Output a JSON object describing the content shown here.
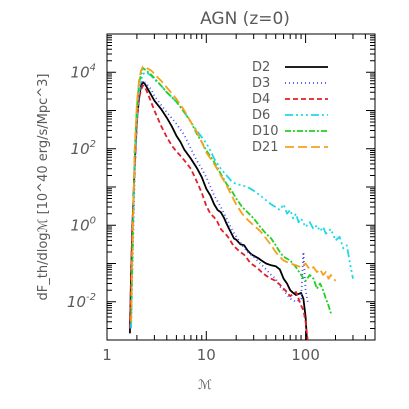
{
  "chart_data": {
    "type": "line",
    "title": "AGN (z=0)",
    "xlabel": "ℳ",
    "ylabel": "dF_th/dlogℳ [10^40 erg/s/Mpc^3]",
    "xscale": "log",
    "yscale": "log",
    "xlim": [
      1,
      500
    ],
    "ylim": [
      0.001,
      100000
    ],
    "x_ticks": [
      {
        "value": 1,
        "label": "1"
      },
      {
        "value": 10,
        "label": "10"
      },
      {
        "value": 100,
        "label": "100"
      }
    ],
    "y_ticks": [
      {
        "value": 0.01,
        "base": "10",
        "exp": "-2"
      },
      {
        "value": 1,
        "base": "10",
        "exp": "0"
      },
      {
        "value": 100,
        "base": "10",
        "exp": "2"
      },
      {
        "value": 10000,
        "base": "10",
        "exp": "4"
      }
    ],
    "legend_position": "top-right",
    "series": [
      {
        "name": "D2",
        "color": "#000000",
        "dash": "solid",
        "points": [
          [
            1.7,
            0.0015
          ],
          [
            1.75,
            0.05
          ],
          [
            1.8,
            0.8
          ],
          [
            1.9,
            40
          ],
          [
            2.0,
            600
          ],
          [
            2.1,
            2000
          ],
          [
            2.2,
            4500
          ],
          [
            2.3,
            5500
          ],
          [
            2.4,
            5000
          ],
          [
            2.6,
            3500
          ],
          [
            2.8,
            2500
          ],
          [
            3.0,
            1800
          ],
          [
            3.5,
            1100
          ],
          [
            4,
            650
          ],
          [
            4.5,
            380
          ],
          [
            5,
            220
          ],
          [
            5.5,
            150
          ],
          [
            6,
            95
          ],
          [
            7,
            55
          ],
          [
            8,
            32
          ],
          [
            9,
            18
          ],
          [
            10,
            9
          ],
          [
            11,
            6
          ],
          [
            12,
            3.5
          ],
          [
            13,
            2.5
          ],
          [
            14,
            2.2
          ],
          [
            15,
            1.6
          ],
          [
            16,
            1.1
          ],
          [
            17,
            0.8
          ],
          [
            18,
            0.6
          ],
          [
            19,
            0.45
          ],
          [
            20,
            0.42
          ],
          [
            22,
            0.32
          ],
          [
            24,
            0.3
          ],
          [
            26,
            0.22
          ],
          [
            28,
            0.18
          ],
          [
            30,
            0.16
          ],
          [
            33,
            0.14
          ],
          [
            36,
            0.12
          ],
          [
            40,
            0.1
          ],
          [
            45,
            0.09
          ],
          [
            50,
            0.085
          ],
          [
            55,
            0.07
          ],
          [
            60,
            0.04
          ],
          [
            65,
            0.03
          ],
          [
            70,
            0.02
          ],
          [
            75,
            0.017
          ],
          [
            80,
            0.015
          ],
          [
            85,
            0.016
          ],
          [
            90,
            0.017
          ],
          [
            95,
            0.012
          ],
          [
            100,
            0.004
          ],
          [
            103,
            0.001
          ]
        ]
      },
      {
        "name": "D3",
        "color": "#4a4aff",
        "dash": "1,3",
        "points": [
          [
            1.75,
            0.003
          ],
          [
            1.8,
            0.05
          ],
          [
            1.9,
            20
          ],
          [
            2.0,
            500
          ],
          [
            2.1,
            2500
          ],
          [
            2.2,
            5000
          ],
          [
            2.3,
            6000
          ],
          [
            2.5,
            5000
          ],
          [
            2.8,
            3500
          ],
          [
            3,
            2400
          ],
          [
            3.5,
            1400
          ],
          [
            4,
            900
          ],
          [
            5,
            450
          ],
          [
            6,
            230
          ],
          [
            7,
            100
          ],
          [
            8,
            50
          ],
          [
            9,
            30
          ],
          [
            10,
            18
          ],
          [
            12,
            6
          ],
          [
            14,
            3
          ],
          [
            16,
            1.5
          ],
          [
            18,
            0.8
          ],
          [
            20,
            0.5
          ],
          [
            23,
            0.3
          ],
          [
            26,
            0.2
          ],
          [
            30,
            0.15
          ],
          [
            35,
            0.1
          ],
          [
            40,
            0.07
          ],
          [
            45,
            0.05
          ],
          [
            50,
            0.04
          ],
          [
            55,
            0.025
          ],
          [
            60,
            0.02
          ],
          [
            70,
            0.012
          ],
          [
            80,
            0.01
          ],
          [
            90,
            0.012
          ],
          [
            95,
            0.2
          ],
          [
            98,
            0.05
          ],
          [
            100,
            0.02
          ],
          [
            105,
            0.01
          ]
        ]
      },
      {
        "name": "D4",
        "color": "#e0202a",
        "dash": "5,3",
        "points": [
          [
            1.7,
            0.002
          ],
          [
            1.75,
            0.05
          ],
          [
            1.8,
            0.8
          ],
          [
            1.9,
            30
          ],
          [
            2.0,
            500
          ],
          [
            2.1,
            2000
          ],
          [
            2.2,
            3500
          ],
          [
            2.3,
            4500
          ],
          [
            2.4,
            4200
          ],
          [
            2.6,
            2600
          ],
          [
            2.8,
            1600
          ],
          [
            3,
            1000
          ],
          [
            3.5,
            400
          ],
          [
            4,
            200
          ],
          [
            4.5,
            120
          ],
          [
            5,
            85
          ],
          [
            5.5,
            65
          ],
          [
            6,
            50
          ],
          [
            7,
            30
          ],
          [
            8,
            14
          ],
          [
            9,
            7
          ],
          [
            10,
            3.2
          ],
          [
            11,
            2
          ],
          [
            12,
            1.6
          ],
          [
            13,
            1.2
          ],
          [
            14,
            0.8
          ],
          [
            15,
            0.65
          ],
          [
            16,
            0.55
          ],
          [
            17,
            0.45
          ],
          [
            18,
            0.35
          ],
          [
            19,
            0.28
          ],
          [
            20,
            0.25
          ],
          [
            22,
            0.2
          ],
          [
            24,
            0.17
          ],
          [
            26,
            0.13
          ],
          [
            28,
            0.1
          ],
          [
            30,
            0.09
          ],
          [
            33,
            0.075
          ],
          [
            36,
            0.06
          ],
          [
            40,
            0.048
          ],
          [
            45,
            0.04
          ],
          [
            50,
            0.035
          ],
          [
            55,
            0.028
          ],
          [
            60,
            0.022
          ],
          [
            65,
            0.018
          ],
          [
            70,
            0.014
          ],
          [
            75,
            0.016
          ],
          [
            80,
            0.018
          ],
          [
            85,
            0.012
          ],
          [
            90,
            0.008
          ],
          [
            95,
            0.006
          ],
          [
            100,
            0.003
          ],
          [
            105,
            0.001
          ]
        ]
      },
      {
        "name": "D6",
        "color": "#20d8e8",
        "dash": "8,3,2,3,2,3,2,3",
        "points": [
          [
            1.75,
            0.002
          ],
          [
            1.8,
            0.1
          ],
          [
            1.9,
            50
          ],
          [
            2.0,
            700
          ],
          [
            2.1,
            3000
          ],
          [
            2.2,
            6000
          ],
          [
            2.3,
            9000
          ],
          [
            2.5,
            10000
          ],
          [
            2.8,
            8000
          ],
          [
            3,
            6500
          ],
          [
            3.5,
            4500
          ],
          [
            4,
            3000
          ],
          [
            5,
            1700
          ],
          [
            6,
            900
          ],
          [
            7,
            500
          ],
          [
            8,
            300
          ],
          [
            9,
            200
          ],
          [
            10,
            140
          ],
          [
            11,
            90
          ],
          [
            12,
            55
          ],
          [
            14,
            30
          ],
          [
            16,
            20
          ],
          [
            18,
            14
          ],
          [
            20,
            12
          ],
          [
            23,
            11
          ],
          [
            26,
            10
          ],
          [
            30,
            8
          ],
          [
            35,
            6
          ],
          [
            40,
            4.5
          ],
          [
            45,
            3.5
          ],
          [
            50,
            3
          ],
          [
            55,
            2.5
          ],
          [
            60,
            3.5
          ],
          [
            65,
            2
          ],
          [
            70,
            2.5
          ],
          [
            75,
            1.5
          ],
          [
            80,
            2
          ],
          [
            85,
            1.2
          ],
          [
            90,
            1.5
          ],
          [
            100,
            0.9
          ],
          [
            110,
            1.2
          ],
          [
            120,
            0.8
          ],
          [
            130,
            1.0
          ],
          [
            140,
            0.7
          ],
          [
            150,
            0.9
          ],
          [
            160,
            0.6
          ],
          [
            180,
            0.8
          ],
          [
            200,
            0.4
          ],
          [
            220,
            0.5
          ],
          [
            240,
            0.25
          ],
          [
            260,
            0.3
          ],
          [
            280,
            0.1
          ],
          [
            300,
            0.04
          ]
        ]
      },
      {
        "name": "D10",
        "color": "#22d022",
        "dash": "6,2,2,2",
        "points": [
          [
            1.75,
            0.003
          ],
          [
            1.8,
            0.15
          ],
          [
            1.9,
            80
          ],
          [
            2.0,
            1200
          ],
          [
            2.1,
            5000
          ],
          [
            2.2,
            9000
          ],
          [
            2.3,
            13000
          ],
          [
            2.5,
            11000
          ],
          [
            2.8,
            8500
          ],
          [
            3,
            7000
          ],
          [
            3.5,
            4500
          ],
          [
            4,
            3000
          ],
          [
            5,
            1700
          ],
          [
            6,
            900
          ],
          [
            7,
            500
          ],
          [
            8,
            250
          ],
          [
            9,
            150
          ],
          [
            10,
            90
          ],
          [
            12,
            45
          ],
          [
            14,
            22
          ],
          [
            16,
            12
          ],
          [
            18,
            8
          ],
          [
            20,
            5
          ],
          [
            23,
            3
          ],
          [
            26,
            2.2
          ],
          [
            30,
            1.5
          ],
          [
            35,
            0.9
          ],
          [
            40,
            0.6
          ],
          [
            45,
            0.45
          ],
          [
            50,
            0.3
          ],
          [
            55,
            0.2
          ],
          [
            60,
            0.15
          ],
          [
            70,
            0.12
          ],
          [
            80,
            0.08
          ],
          [
            90,
            0.05
          ],
          [
            100,
            0.035
          ],
          [
            110,
            0.05
          ],
          [
            120,
            0.04
          ],
          [
            130,
            0.022
          ],
          [
            140,
            0.03
          ],
          [
            150,
            0.02
          ],
          [
            160,
            0.012
          ],
          [
            170,
            0.008
          ],
          [
            180,
            0.005
          ]
        ]
      },
      {
        "name": "D21",
        "color": "#f7a020",
        "dash": "9,4",
        "points": [
          [
            1.75,
            0.003
          ],
          [
            1.8,
            0.2
          ],
          [
            1.9,
            100
          ],
          [
            2.0,
            1500
          ],
          [
            2.1,
            6000
          ],
          [
            2.2,
            11000
          ],
          [
            2.3,
            14000
          ],
          [
            2.5,
            13000
          ],
          [
            2.8,
            11000
          ],
          [
            3,
            9000
          ],
          [
            3.5,
            6000
          ],
          [
            4,
            4000
          ],
          [
            5,
            2000
          ],
          [
            6,
            1000
          ],
          [
            7,
            500
          ],
          [
            8,
            280
          ],
          [
            9,
            150
          ],
          [
            10,
            80
          ],
          [
            12,
            40
          ],
          [
            14,
            20
          ],
          [
            16,
            11
          ],
          [
            18,
            6
          ],
          [
            20,
            3.5
          ],
          [
            23,
            2
          ],
          [
            26,
            1.4
          ],
          [
            30,
            1.0
          ],
          [
            35,
            0.7
          ],
          [
            40,
            0.45
          ],
          [
            45,
            0.3
          ],
          [
            50,
            0.2
          ],
          [
            55,
            0.15
          ],
          [
            60,
            0.12
          ],
          [
            70,
            0.1
          ],
          [
            80,
            0.09
          ],
          [
            90,
            0.08
          ],
          [
            100,
            0.1
          ],
          [
            110,
            0.07
          ],
          [
            120,
            0.08
          ],
          [
            130,
            0.06
          ],
          [
            140,
            0.07
          ],
          [
            150,
            0.05
          ],
          [
            160,
            0.06
          ],
          [
            170,
            0.04
          ],
          [
            180,
            0.05
          ],
          [
            200,
            0.035
          ]
        ]
      }
    ]
  }
}
